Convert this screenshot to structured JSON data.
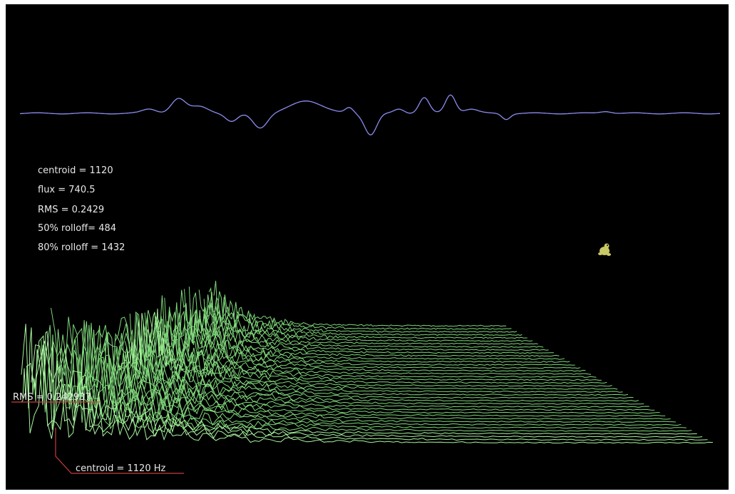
{
  "stats": {
    "centroid": "centroid  =  1120",
    "flux": "flux  =  740.5",
    "rms": "RMS  =  0.2429",
    "rolloff50": "50%  rolloff=  484",
    "rolloff80": "80%  rolloff  =  1432"
  },
  "markers": {
    "rms_label": "RMS  =  0.242937",
    "centroid_label": "centroid  =  1120  Hz"
  },
  "icons": {
    "mascot": "frog-mascot-icon"
  },
  "colors": {
    "background": "#000000",
    "frame": "#ffffff",
    "waveform": "#8c8cf0",
    "spectrum": "#7fd67a",
    "spectrum_front": "#a6f59c",
    "marker_line": "#c83c3c",
    "text": "#e8e8e8",
    "mascot": "#c8c864"
  }
}
